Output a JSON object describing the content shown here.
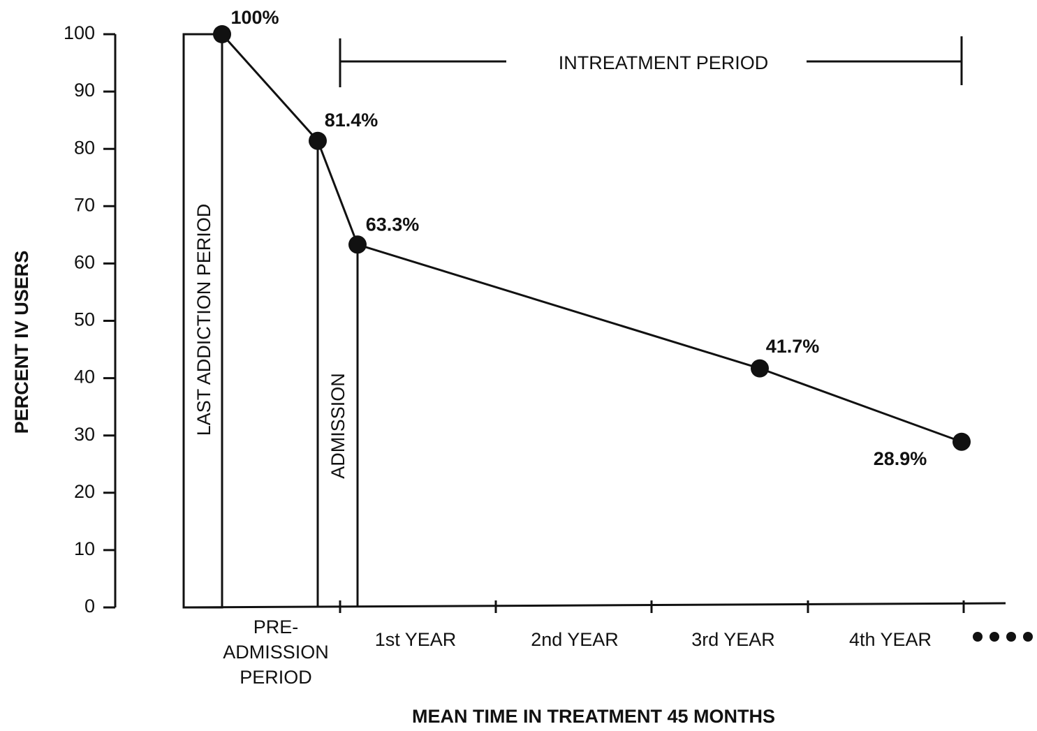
{
  "chart_data": {
    "type": "line",
    "categories": [
      null,
      null,
      null,
      null,
      null
    ],
    "values": [
      100,
      81.4,
      63.3,
      41.7,
      28.9
    ],
    "value_labels": [
      "100%",
      "81.4%",
      "63.3%",
      "41.7%",
      "28.9%"
    ],
    "color": "#111111",
    "ylim": [
      0,
      100
    ],
    "yticks": [
      0,
      10,
      20,
      30,
      40,
      50,
      60,
      70,
      80,
      90,
      100
    ],
    "ylabel": "PERCENT IV USERS",
    "xlabel": "MEAN TIME IN TREATMENT  45 MONTHS",
    "period_labels": [
      [
        "PRE-",
        "ADMISSION",
        "PERIOD"
      ],
      [
        "1st YEAR"
      ],
      [
        "2nd YEAR"
      ],
      [
        "3rd YEAR"
      ],
      [
        "4th YEAR"
      ]
    ],
    "annotations": [
      "LAST ADDICTION PERIOD",
      "ADMISSION",
      "INTREATMENT PERIOD"
    ]
  }
}
